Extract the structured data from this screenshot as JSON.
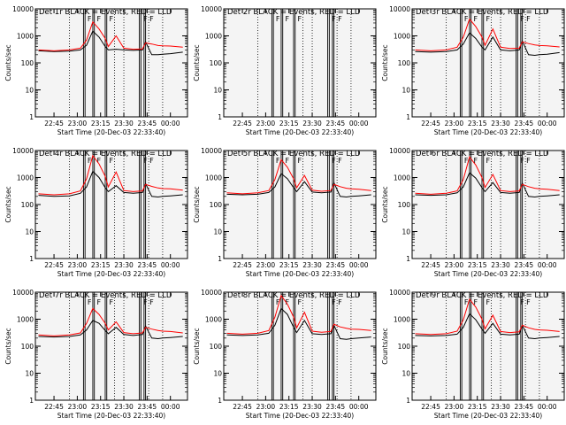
{
  "figure": {
    "ylabel": "Counts/sec",
    "xlabel": "Start Time (20-Dec-03 22:33:40)"
  },
  "colors": {
    "events": "#000000",
    "lld": "#ff0000"
  },
  "chart_data": [
    {
      "type": "line",
      "title": "Det 1r BLACK = Events, RED = LLD",
      "ylabel": "Counts/sec",
      "xlabel": "Start Time (20-Dec-03 22:33:40)",
      "x_tick_labels": [
        "22:45",
        "23:00",
        "23:15",
        "23:30",
        "23:45",
        "00:00"
      ],
      "y_tick_labels": [
        "1",
        "10",
        "100",
        "1000",
        "10000"
      ],
      "ylim": [
        1,
        10000
      ],
      "yscale": "log",
      "series": [
        {
          "name": "Events",
          "x": [
            "22:35",
            "22:45",
            "22:55",
            "23:02",
            "23:06",
            "23:10",
            "23:14",
            "23:18",
            "23:20",
            "23:25",
            "23:30",
            "23:36",
            "23:42",
            "23:44",
            "23:48",
            "23:52",
            "23:55",
            "00:00",
            "00:08"
          ],
          "values": [
            280,
            260,
            270,
            300,
            450,
            1500,
            900,
            400,
            300,
            320,
            300,
            290,
            300,
            600,
            200,
            200,
            210,
            220,
            250
          ]
        },
        {
          "name": "LLD",
          "x": [
            "22:35",
            "22:45",
            "22:55",
            "23:02",
            "23:06",
            "23:10",
            "23:14",
            "23:18",
            "23:20",
            "23:25",
            "23:30",
            "23:36",
            "23:42",
            "23:44",
            "23:48",
            "23:52",
            "23:55",
            "00:00",
            "00:08"
          ],
          "values": [
            300,
            280,
            300,
            350,
            700,
            3300,
            1800,
            800,
            400,
            1000,
            350,
            320,
            330,
            550,
            500,
            440,
            430,
            420,
            380
          ]
        }
      ],
      "annotations": [
        "F",
        "F",
        "F",
        "F",
        "F"
      ]
    },
    {
      "type": "line",
      "title": "Det 2r BLACK = Events, RED = LLD",
      "ylabel": "Counts/sec",
      "xlabel": "Start Time (20-Dec-03 22:33:40)",
      "x_tick_labels": [
        "22:45",
        "23:00",
        "23:15",
        "23:30",
        "23:45",
        "00:00"
      ],
      "y_tick_labels": [
        "1",
        "10",
        "100",
        "1000",
        "10000"
      ],
      "ylim": [
        1,
        10000
      ],
      "yscale": "log",
      "series": [],
      "annotations": [
        "F",
        "F",
        "F",
        "F",
        "F"
      ]
    },
    {
      "type": "line",
      "title": "Det 3r BLACK = Events, RED = LLD",
      "ylabel": "Counts/sec",
      "xlabel": "Start Time (20-Dec-03 22:33:40)",
      "x_tick_labels": [
        "22:45",
        "23:00",
        "23:15",
        "23:30",
        "23:45",
        "00:00"
      ],
      "y_tick_labels": [
        "1",
        "10",
        "100",
        "1000",
        "10000"
      ],
      "ylim": [
        1,
        10000
      ],
      "yscale": "log",
      "series": [
        {
          "name": "Events",
          "x": [
            "22:35",
            "22:45",
            "22:55",
            "23:02",
            "23:06",
            "23:10",
            "23:14",
            "23:18",
            "23:20",
            "23:25",
            "23:30",
            "23:36",
            "23:42",
            "23:44",
            "23:48",
            "23:52",
            "23:55",
            "00:00",
            "00:08"
          ],
          "values": [
            260,
            250,
            260,
            300,
            500,
            1300,
            800,
            380,
            300,
            900,
            300,
            280,
            300,
            650,
            200,
            190,
            200,
            210,
            240
          ]
        },
        {
          "name": "LLD",
          "x": [
            "22:35",
            "22:45",
            "22:55",
            "23:02",
            "23:06",
            "23:10",
            "23:14",
            "23:18",
            "23:20",
            "23:25",
            "23:30",
            "23:36",
            "23:42",
            "23:44",
            "23:48",
            "23:52",
            "23:55",
            "00:00",
            "00:08"
          ],
          "values": [
            300,
            280,
            300,
            380,
            900,
            4200,
            2200,
            900,
            450,
            1800,
            380,
            340,
            350,
            600,
            520,
            460,
            440,
            430,
            390
          ]
        }
      ],
      "annotations": [
        "F",
        "F",
        "F",
        "F",
        "F"
      ]
    },
    {
      "type": "line",
      "title": "Det 4r BLACK = Events, RED = LLD",
      "ylabel": "Counts/sec",
      "xlabel": "Start Time (20-Dec-03 22:33:40)",
      "x_tick_labels": [
        "22:45",
        "23:00",
        "23:15",
        "23:30",
        "23:45",
        "00:00"
      ],
      "y_tick_labels": [
        "1",
        "10",
        "100",
        "1000",
        "10000"
      ],
      "ylim": [
        1,
        10000
      ],
      "yscale": "log",
      "series": [
        {
          "name": "Events",
          "x": [
            "22:35",
            "22:45",
            "22:55",
            "23:02",
            "23:06",
            "23:10",
            "23:14",
            "23:18",
            "23:20",
            "23:25",
            "23:30",
            "23:36",
            "23:42",
            "23:44",
            "23:48",
            "23:52",
            "23:55",
            "00:00",
            "00:08"
          ],
          "values": [
            220,
            200,
            210,
            260,
            450,
            1700,
            1000,
            420,
            300,
            500,
            280,
            260,
            280,
            600,
            200,
            190,
            200,
            210,
            230
          ]
        },
        {
          "name": "LLD",
          "x": [
            "22:35",
            "22:45",
            "22:55",
            "23:02",
            "23:06",
            "23:10",
            "23:14",
            "23:18",
            "23:20",
            "23:25",
            "23:30",
            "23:36",
            "23:42",
            "23:44",
            "23:48",
            "23:52",
            "23:55",
            "00:00",
            "00:08"
          ],
          "values": [
            250,
            230,
            250,
            320,
            900,
            6500,
            3200,
            1100,
            450,
            1600,
            330,
            300,
            320,
            560,
            470,
            410,
            390,
            380,
            340
          ]
        }
      ],
      "annotations": [
        "F",
        "F",
        "F",
        "F",
        "F"
      ]
    },
    {
      "type": "line",
      "title": "Det 5r BLACK = Events, RED = LLD",
      "ylabel": "Counts/sec",
      "xlabel": "Start Time (20-Dec-03 22:33:40)",
      "x_tick_labels": [
        "22:45",
        "23:00",
        "23:15",
        "23:30",
        "23:45",
        "00:00"
      ],
      "y_tick_labels": [
        "1",
        "10",
        "100",
        "1000",
        "10000"
      ],
      "ylim": [
        1,
        10000
      ],
      "yscale": "log",
      "series": [
        {
          "name": "Events",
          "x": [
            "22:35",
            "22:45",
            "22:55",
            "23:02",
            "23:06",
            "23:10",
            "23:14",
            "23:18",
            "23:20",
            "23:25",
            "23:30",
            "23:36",
            "23:42",
            "23:44",
            "23:48",
            "23:52",
            "23:55",
            "00:00",
            "00:08"
          ],
          "values": [
            240,
            230,
            240,
            280,
            450,
            1400,
            900,
            420,
            300,
            700,
            290,
            270,
            290,
            640,
            200,
            190,
            200,
            210,
            230
          ]
        },
        {
          "name": "LLD",
          "x": [
            "22:35",
            "22:45",
            "22:55",
            "23:02",
            "23:06",
            "23:10",
            "23:14",
            "23:18",
            "23:20",
            "23:25",
            "23:30",
            "23:36",
            "23:42",
            "23:44",
            "23:48",
            "23:52",
            "23:55",
            "00:00",
            "00:08"
          ],
          "values": [
            270,
            250,
            270,
            330,
            850,
            4600,
            2400,
            900,
            420,
            1200,
            340,
            310,
            330,
            560,
            460,
            400,
            380,
            370,
            330
          ]
        }
      ],
      "annotations": [
        "F",
        "F",
        "F",
        "F",
        "F"
      ]
    },
    {
      "type": "line",
      "title": "Det 6r BLACK = Events, RED = LLD",
      "ylabel": "Counts/sec",
      "xlabel": "Start Time (20-Dec-03 22:33:40)",
      "x_tick_labels": [
        "22:45",
        "23:00",
        "23:15",
        "23:30",
        "23:45",
        "00:00"
      ],
      "y_tick_labels": [
        "1",
        "10",
        "100",
        "1000",
        "10000"
      ],
      "ylim": [
        1,
        10000
      ],
      "yscale": "log",
      "series": [
        {
          "name": "Events",
          "x": [
            "22:35",
            "22:45",
            "22:55",
            "23:02",
            "23:06",
            "23:10",
            "23:14",
            "23:18",
            "23:20",
            "23:25",
            "23:30",
            "23:36",
            "23:42",
            "23:44",
            "23:48",
            "23:52",
            "23:55",
            "00:00",
            "00:08"
          ],
          "values": [
            230,
            220,
            230,
            270,
            450,
            1500,
            950,
            420,
            300,
            650,
            280,
            260,
            280,
            620,
            200,
            190,
            200,
            210,
            230
          ]
        },
        {
          "name": "LLD",
          "x": [
            "22:35",
            "22:45",
            "22:55",
            "23:02",
            "23:06",
            "23:10",
            "23:14",
            "23:18",
            "23:20",
            "23:25",
            "23:30",
            "23:36",
            "23:42",
            "23:44",
            "23:48",
            "23:52",
            "23:55",
            "00:00",
            "00:08"
          ],
          "values": [
            260,
            240,
            260,
            320,
            850,
            5800,
            2900,
            1000,
            430,
            1300,
            330,
            300,
            320,
            560,
            460,
            400,
            380,
            370,
            330
          ]
        }
      ],
      "annotations": [
        "F",
        "F",
        "F",
        "F",
        "F"
      ]
    },
    {
      "type": "line",
      "title": "Det 7r BLACK = Events, RED = LLD",
      "ylabel": "Counts/sec",
      "xlabel": "Start Time (20-Dec-03 22:33:40)",
      "x_tick_labels": [
        "22:45",
        "23:00",
        "23:15",
        "23:30",
        "23:45",
        "00:00"
      ],
      "y_tick_labels": [
        "1",
        "10",
        "100",
        "1000",
        "10000"
      ],
      "ylim": [
        1,
        10000
      ],
      "yscale": "log",
      "series": [
        {
          "name": "Events",
          "x": [
            "22:35",
            "22:45",
            "22:55",
            "23:02",
            "23:06",
            "23:10",
            "23:14",
            "23:18",
            "23:20",
            "23:25",
            "23:30",
            "23:36",
            "23:42",
            "23:44",
            "23:48",
            "23:52",
            "23:55",
            "00:00",
            "00:08"
          ],
          "values": [
            230,
            220,
            230,
            260,
            400,
            900,
            700,
            380,
            290,
            500,
            270,
            250,
            270,
            560,
            200,
            190,
            200,
            210,
            230
          ]
        },
        {
          "name": "LLD",
          "x": [
            "22:35",
            "22:45",
            "22:55",
            "23:02",
            "23:06",
            "23:10",
            "23:14",
            "23:18",
            "23:20",
            "23:25",
            "23:30",
            "23:36",
            "23:42",
            "23:44",
            "23:48",
            "23:52",
            "23:55",
            "00:00",
            "00:08"
          ],
          "values": [
            260,
            240,
            260,
            310,
            700,
            2500,
            1500,
            700,
            400,
            800,
            320,
            290,
            310,
            500,
            430,
            380,
            360,
            350,
            310
          ]
        }
      ],
      "annotations": [
        "F",
        "F",
        "F",
        "F",
        "F"
      ]
    },
    {
      "type": "line",
      "title": "Det 8r BLACK = Events, RED = LLD",
      "ylabel": "Counts/sec",
      "xlabel": "Start Time (20-Dec-03 22:33:40)",
      "x_tick_labels": [
        "22:45",
        "23:00",
        "23:15",
        "23:30",
        "23:45",
        "00:00"
      ],
      "y_tick_labels": [
        "1",
        "10",
        "100",
        "1000",
        "10000"
      ],
      "ylim": [
        1,
        10000
      ],
      "yscale": "log",
      "series": [
        {
          "name": "Events",
          "x": [
            "22:35",
            "22:45",
            "22:55",
            "23:02",
            "23:06",
            "23:10",
            "23:14",
            "23:18",
            "23:20",
            "23:25",
            "23:30",
            "23:36",
            "23:42",
            "23:44",
            "23:48",
            "23:52",
            "23:55",
            "00:00",
            "00:08"
          ],
          "values": [
            260,
            250,
            260,
            300,
            600,
            2500,
            1500,
            500,
            320,
            900,
            290,
            270,
            290,
            600,
            190,
            180,
            190,
            200,
            220
          ]
        },
        {
          "name": "LLD",
          "x": [
            "22:35",
            "22:45",
            "22:55",
            "23:02",
            "23:06",
            "23:10",
            "23:14",
            "23:18",
            "23:20",
            "23:25",
            "23:30",
            "23:36",
            "23:42",
            "23:44",
            "23:48",
            "23:52",
            "23:55",
            "00:00",
            "00:08"
          ],
          "values": [
            300,
            280,
            300,
            380,
            1200,
            7500,
            3600,
            1200,
            480,
            1800,
            360,
            330,
            350,
            650,
            520,
            460,
            430,
            420,
            380
          ]
        }
      ],
      "annotations": [
        "F",
        "F",
        "F",
        "F",
        "F"
      ]
    },
    {
      "type": "line",
      "title": "Det 9r BLACK = Events, RED = LLD",
      "ylabel": "Counts/sec",
      "xlabel": "Start Time (20-Dec-03 22:33:40)",
      "x_tick_labels": [
        "22:45",
        "23:00",
        "23:15",
        "23:30",
        "23:45",
        "00:00"
      ],
      "y_tick_labels": [
        "1",
        "10",
        "100",
        "1000",
        "10000"
      ],
      "ylim": [
        1,
        10000
      ],
      "yscale": "log",
      "series": [
        {
          "name": "Events",
          "x": [
            "22:35",
            "22:45",
            "22:55",
            "23:02",
            "23:06",
            "23:10",
            "23:14",
            "23:18",
            "23:20",
            "23:25",
            "23:30",
            "23:36",
            "23:42",
            "23:44",
            "23:48",
            "23:52",
            "23:55",
            "00:00",
            "00:08"
          ],
          "values": [
            250,
            240,
            250,
            280,
            500,
            1600,
            950,
            430,
            300,
            700,
            280,
            260,
            280,
            600,
            200,
            190,
            200,
            210,
            230
          ]
        },
        {
          "name": "LLD",
          "x": [
            "22:35",
            "22:45",
            "22:55",
            "23:02",
            "23:06",
            "23:10",
            "23:14",
            "23:18",
            "23:20",
            "23:25",
            "23:30",
            "23:36",
            "23:42",
            "23:44",
            "23:48",
            "23:52",
            "23:55",
            "00:00",
            "00:08"
          ],
          "values": [
            290,
            270,
            290,
            360,
            950,
            5500,
            2800,
            1000,
            440,
            1400,
            350,
            320,
            340,
            600,
            480,
            420,
            400,
            390,
            350
          ]
        }
      ],
      "annotations": [
        "F",
        "F",
        "F",
        "F",
        "F"
      ]
    }
  ]
}
